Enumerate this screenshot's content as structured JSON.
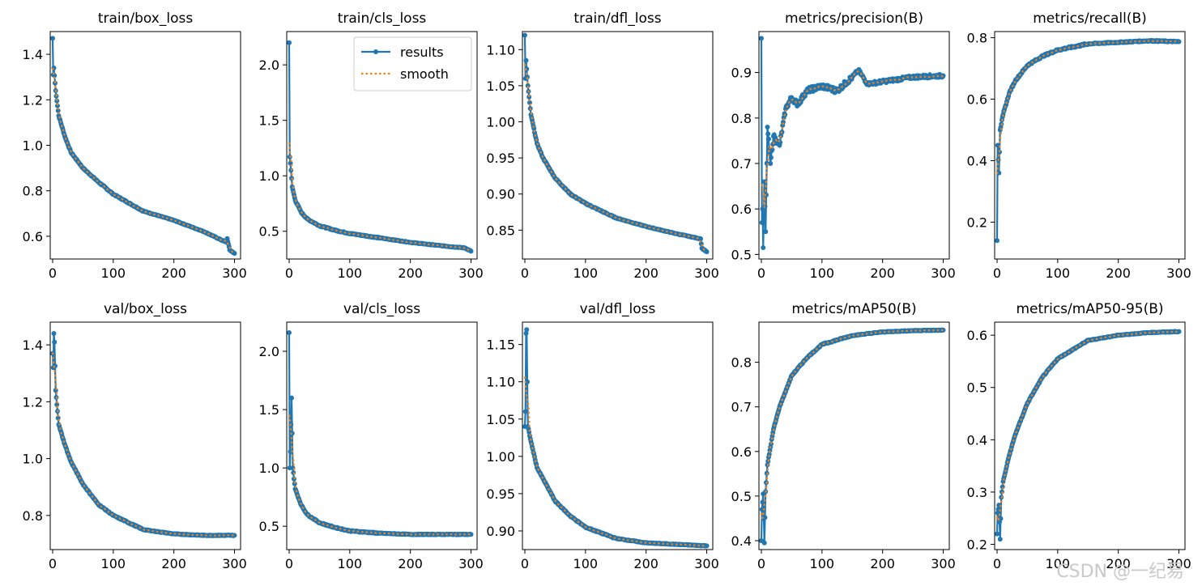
{
  "watermark": "CSDN @一纪易",
  "legend": {
    "series": [
      {
        "name": "results"
      },
      {
        "name": "smooth"
      }
    ]
  },
  "colors": {
    "results": "#1f77b4",
    "smooth": "#ff7f0e",
    "axis": "#000000"
  },
  "chart_data": [
    {
      "type": "line",
      "title": "train/box_loss",
      "xlim": [
        -4,
        310
      ],
      "ylim": [
        0.5,
        1.5
      ],
      "x_ticks": [
        "0",
        "100",
        "200",
        "300"
      ],
      "y_ticks": [
        "0.6",
        "0.8",
        "1.0",
        "1.2",
        "1.4"
      ],
      "legend": false,
      "key_points": [
        [
          0,
          1.47
        ],
        [
          1,
          1.31
        ],
        [
          2,
          1.34
        ],
        [
          5,
          1.24
        ],
        [
          10,
          1.13
        ],
        [
          20,
          1.04
        ],
        [
          30,
          0.97
        ],
        [
          50,
          0.9
        ],
        [
          75,
          0.84
        ],
        [
          100,
          0.785
        ],
        [
          150,
          0.71
        ],
        [
          200,
          0.67
        ],
        [
          250,
          0.62
        ],
        [
          285,
          0.575
        ],
        [
          288,
          0.59
        ],
        [
          292,
          0.54
        ],
        [
          300,
          0.525
        ]
      ]
    },
    {
      "type": "line",
      "title": "train/cls_loss",
      "xlim": [
        -4,
        310
      ],
      "ylim": [
        0.25,
        2.3
      ],
      "x_ticks": [
        "0",
        "100",
        "200",
        "300"
      ],
      "y_ticks": [
        "0.5",
        "1.0",
        "1.5",
        "2.0"
      ],
      "legend": true,
      "legend_placement": "upper-right",
      "key_points": [
        [
          0,
          2.2
        ],
        [
          1,
          1.17
        ],
        [
          3,
          1.05
        ],
        [
          5,
          0.9
        ],
        [
          10,
          0.78
        ],
        [
          20,
          0.67
        ],
        [
          30,
          0.61
        ],
        [
          50,
          0.55
        ],
        [
          75,
          0.51
        ],
        [
          100,
          0.48
        ],
        [
          150,
          0.44
        ],
        [
          200,
          0.4
        ],
        [
          250,
          0.37
        ],
        [
          290,
          0.35
        ],
        [
          300,
          0.32
        ]
      ]
    },
    {
      "type": "line",
      "title": "train/dfl_loss",
      "xlim": [
        -4,
        310
      ],
      "ylim": [
        0.81,
        1.125
      ],
      "x_ticks": [
        "0",
        "100",
        "200",
        "300"
      ],
      "y_ticks": [
        "0.85",
        "0.90",
        "0.95",
        "1.00",
        "1.05",
        "1.10"
      ],
      "legend": false,
      "key_points": [
        [
          0,
          1.12
        ],
        [
          1,
          1.06
        ],
        [
          2,
          1.085
        ],
        [
          5,
          1.05
        ],
        [
          10,
          1.01
        ],
        [
          20,
          0.97
        ],
        [
          30,
          0.95
        ],
        [
          50,
          0.922
        ],
        [
          75,
          0.9
        ],
        [
          100,
          0.887
        ],
        [
          150,
          0.867
        ],
        [
          200,
          0.855
        ],
        [
          250,
          0.845
        ],
        [
          290,
          0.838
        ],
        [
          292,
          0.825
        ],
        [
          300,
          0.82
        ]
      ]
    },
    {
      "type": "line",
      "title": "metrics/precision(B)",
      "xlim": [
        -4,
        310
      ],
      "ylim": [
        0.49,
        0.99
      ],
      "x_ticks": [
        "0",
        "100",
        "200",
        "300"
      ],
      "y_ticks": [
        "0.5",
        "0.6",
        "0.7",
        "0.8",
        "0.9"
      ],
      "legend": false,
      "key_points": [
        [
          0,
          0.975
        ],
        [
          1,
          0.57
        ],
        [
          2,
          0.6
        ],
        [
          3,
          0.515
        ],
        [
          5,
          0.66
        ],
        [
          7,
          0.55
        ],
        [
          10,
          0.78
        ],
        [
          15,
          0.7
        ],
        [
          20,
          0.76
        ],
        [
          30,
          0.74
        ],
        [
          40,
          0.82
        ],
        [
          50,
          0.845
        ],
        [
          60,
          0.83
        ],
        [
          75,
          0.86
        ],
        [
          100,
          0.87
        ],
        [
          125,
          0.86
        ],
        [
          150,
          0.89
        ],
        [
          160,
          0.905
        ],
        [
          175,
          0.875
        ],
        [
          200,
          0.88
        ],
        [
          250,
          0.89
        ],
        [
          300,
          0.893
        ]
      ]
    },
    {
      "type": "line",
      "title": "metrics/recall(B)",
      "xlim": [
        -4,
        310
      ],
      "ylim": [
        0.08,
        0.82
      ],
      "x_ticks": [
        "0",
        "100",
        "200",
        "300"
      ],
      "y_ticks": [
        "0.2",
        "0.4",
        "0.6",
        "0.8"
      ],
      "legend": false,
      "key_points": [
        [
          0,
          0.14
        ],
        [
          1,
          0.45
        ],
        [
          3,
          0.36
        ],
        [
          5,
          0.5
        ],
        [
          10,
          0.55
        ],
        [
          20,
          0.62
        ],
        [
          30,
          0.66
        ],
        [
          50,
          0.71
        ],
        [
          75,
          0.74
        ],
        [
          100,
          0.76
        ],
        [
          150,
          0.78
        ],
        [
          200,
          0.785
        ],
        [
          250,
          0.79
        ],
        [
          300,
          0.787
        ]
      ]
    },
    {
      "type": "line",
      "title": "val/box_loss",
      "xlim": [
        -4,
        310
      ],
      "ylim": [
        0.68,
        1.48
      ],
      "x_ticks": [
        "0",
        "100",
        "200",
        "300"
      ],
      "y_ticks": [
        "0.8",
        "1.0",
        "1.2",
        "1.4"
      ],
      "legend": false,
      "key_points": [
        [
          0,
          1.37
        ],
        [
          1,
          1.32
        ],
        [
          2,
          1.44
        ],
        [
          3,
          1.41
        ],
        [
          5,
          1.24
        ],
        [
          10,
          1.12
        ],
        [
          20,
          1.05
        ],
        [
          30,
          0.99
        ],
        [
          50,
          0.91
        ],
        [
          75,
          0.84
        ],
        [
          100,
          0.8
        ],
        [
          150,
          0.75
        ],
        [
          200,
          0.735
        ],
        [
          250,
          0.73
        ],
        [
          300,
          0.73
        ]
      ]
    },
    {
      "type": "line",
      "title": "val/cls_loss",
      "xlim": [
        -4,
        310
      ],
      "ylim": [
        0.3,
        2.25
      ],
      "x_ticks": [
        "0",
        "100",
        "200",
        "300"
      ],
      "y_ticks": [
        "0.5",
        "1.0",
        "1.5",
        "2.0"
      ],
      "legend": false,
      "key_points": [
        [
          0,
          2.16
        ],
        [
          1,
          1.0
        ],
        [
          2,
          1.14
        ],
        [
          4,
          1.6
        ],
        [
          6,
          1.0
        ],
        [
          10,
          0.82
        ],
        [
          20,
          0.68
        ],
        [
          30,
          0.6
        ],
        [
          50,
          0.53
        ],
        [
          75,
          0.49
        ],
        [
          100,
          0.46
        ],
        [
          150,
          0.44
        ],
        [
          200,
          0.43
        ],
        [
          250,
          0.43
        ],
        [
          300,
          0.43
        ]
      ]
    },
    {
      "type": "line",
      "title": "val/dfl_loss",
      "xlim": [
        -4,
        310
      ],
      "ylim": [
        0.875,
        1.18
      ],
      "x_ticks": [
        "0",
        "100",
        "200",
        "300"
      ],
      "y_ticks": [
        "0.90",
        "0.95",
        "1.00",
        "1.05",
        "1.10",
        "1.15"
      ],
      "legend": false,
      "key_points": [
        [
          0,
          1.04
        ],
        [
          1,
          1.06
        ],
        [
          2,
          1.165
        ],
        [
          3,
          1.17
        ],
        [
          4,
          1.1
        ],
        [
          5,
          1.04
        ],
        [
          10,
          1.02
        ],
        [
          20,
          0.985
        ],
        [
          30,
          0.97
        ],
        [
          50,
          0.94
        ],
        [
          75,
          0.92
        ],
        [
          100,
          0.905
        ],
        [
          150,
          0.89
        ],
        [
          200,
          0.884
        ],
        [
          250,
          0.882
        ],
        [
          300,
          0.88
        ]
      ]
    },
    {
      "type": "line",
      "title": "metrics/mAP50(B)",
      "xlim": [
        -4,
        310
      ],
      "ylim": [
        0.38,
        0.89
      ],
      "x_ticks": [
        "0",
        "100",
        "200",
        "300"
      ],
      "y_ticks": [
        "0.4",
        "0.5",
        "0.6",
        "0.7",
        "0.8"
      ],
      "legend": false,
      "key_points": [
        [
          0,
          0.4
        ],
        [
          1,
          0.47
        ],
        [
          3,
          0.505
        ],
        [
          5,
          0.395
        ],
        [
          7,
          0.51
        ],
        [
          10,
          0.57
        ],
        [
          20,
          0.65
        ],
        [
          30,
          0.7
        ],
        [
          50,
          0.77
        ],
        [
          75,
          0.81
        ],
        [
          100,
          0.84
        ],
        [
          150,
          0.86
        ],
        [
          200,
          0.868
        ],
        [
          250,
          0.871
        ],
        [
          300,
          0.872
        ]
      ]
    },
    {
      "type": "line",
      "title": "metrics/mAP50-95(B)",
      "xlim": [
        -4,
        310
      ],
      "ylim": [
        0.19,
        0.625
      ],
      "x_ticks": [
        "0",
        "100",
        "200",
        "300"
      ],
      "y_ticks": [
        "0.2",
        "0.3",
        "0.4",
        "0.5",
        "0.6"
      ],
      "legend": false,
      "key_points": [
        [
          0,
          0.22
        ],
        [
          1,
          0.26
        ],
        [
          3,
          0.275
        ],
        [
          5,
          0.21
        ],
        [
          7,
          0.29
        ],
        [
          10,
          0.32
        ],
        [
          20,
          0.37
        ],
        [
          30,
          0.41
        ],
        [
          50,
          0.47
        ],
        [
          75,
          0.52
        ],
        [
          100,
          0.555
        ],
        [
          150,
          0.59
        ],
        [
          200,
          0.6
        ],
        [
          250,
          0.605
        ],
        [
          300,
          0.607
        ]
      ]
    }
  ]
}
